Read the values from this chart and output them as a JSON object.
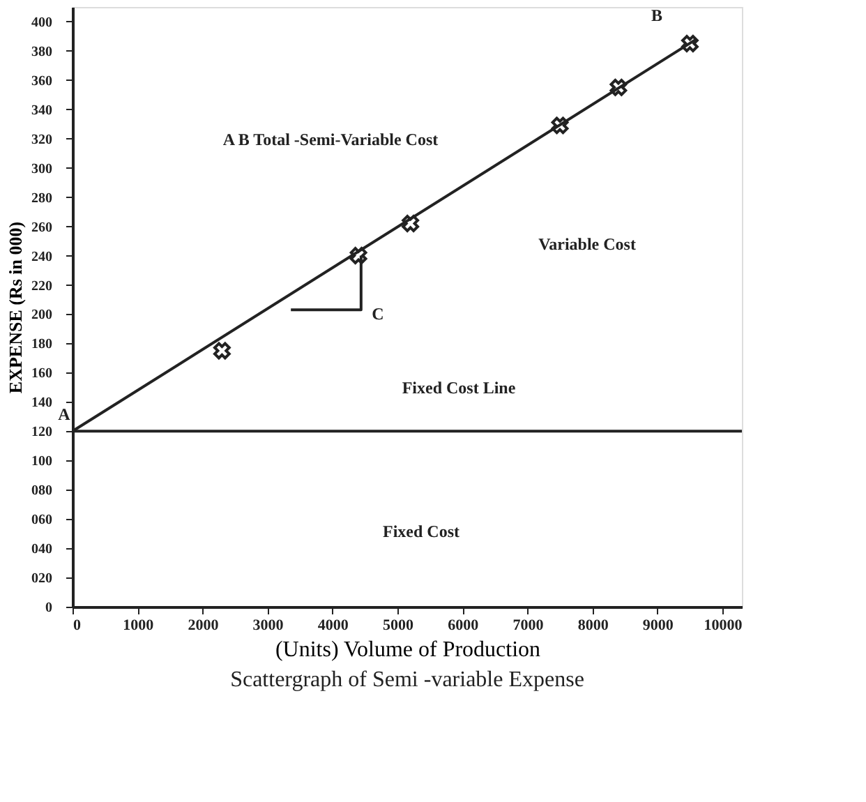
{
  "chart_data": {
    "type": "scatter",
    "title": "Scattergraph of Semi -variable Expense",
    "xlabel": "(Units) Volume of Production",
    "ylabel": "EXPENSE (Rs in 000)",
    "xlim": [
      0,
      10300
    ],
    "xticks": [
      0,
      1000,
      2000,
      3000,
      4000,
      5000,
      6000,
      7000,
      8000,
      9000,
      10000
    ],
    "ylim": [
      0,
      410
    ],
    "yticks": [
      0,
      {
        "value": 20,
        "label": "020"
      },
      {
        "value": 40,
        "label": "040"
      },
      {
        "value": 60,
        "label": "060"
      },
      {
        "value": 80,
        "label": "080"
      },
      100,
      120,
      140,
      160,
      180,
      200,
      220,
      240,
      260,
      280,
      300,
      320,
      340,
      360,
      380,
      400
    ],
    "grid": false,
    "marker": "cross",
    "line_style": "solid",
    "series": [
      {
        "type": "line",
        "marker": "none",
        "color": "#222222",
        "x": [
          0,
          9600
        ],
        "values": [
          120,
          388
        ]
      },
      {
        "type": "scatter",
        "color": "#222222",
        "x": [
          2300,
          4400,
          5200,
          7500,
          8400,
          9500
        ],
        "values": [
          175,
          240,
          262,
          329,
          355,
          385
        ]
      },
      {
        "type": "line",
        "marker": "none",
        "color": "#222222",
        "x": [
          3360,
          4440,
          4440
        ],
        "values": [
          203,
          203,
          240
        ]
      }
    ],
    "ref_lines": [
      {
        "axis": "y",
        "value": 120,
        "color": "#222222"
      }
    ],
    "annotations": [
      "A B Total -Semi-Variable Cost",
      "Variable Cost",
      "Fixed Cost Line",
      "Fixed Cost",
      "C",
      "B",
      "A"
    ]
  }
}
